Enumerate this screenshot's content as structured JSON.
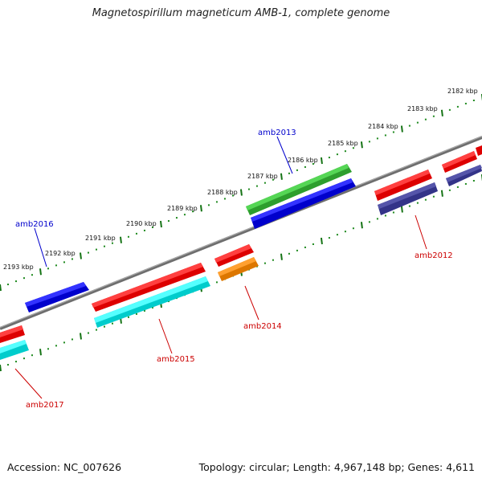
{
  "title": "Magnetospirillum magneticum AMB-1, complete genome",
  "footer": {
    "accession": "Accession: NC_007626",
    "summary": "Topology: circular; Length: 4,967,148 bp; Genes: 4,611"
  },
  "colors": {
    "backbone": "#808080",
    "tick_major": "#157315",
    "tick_minor": "#1f8a1f",
    "label_forward": "#0000cc",
    "label_reverse": "#cc0000"
  },
  "ticks": [
    {
      "kbp": 2182,
      "label": "2182 kbp"
    },
    {
      "kbp": 2183,
      "label": "2183 kbp"
    },
    {
      "kbp": 2184,
      "label": "2184 kbp"
    },
    {
      "kbp": 2185,
      "label": "2185 kbp"
    },
    {
      "kbp": 2186,
      "label": "2186 kbp"
    },
    {
      "kbp": 2187,
      "label": "2187 kbp"
    },
    {
      "kbp": 2188,
      "label": "2188 kbp"
    },
    {
      "kbp": 2189,
      "label": "2189 kbp"
    },
    {
      "kbp": 2190,
      "label": "2190 kbp"
    },
    {
      "kbp": 2191,
      "label": "2191 kbp"
    },
    {
      "kbp": 2192,
      "label": "2192 kbp"
    },
    {
      "kbp": 2193,
      "label": "2193 kbp"
    }
  ],
  "gene_labels": {
    "amb2013": "amb2013",
    "amb2016": "amb2016",
    "amb2012": "amb2012",
    "amb2014": "amb2014",
    "amb2015": "amb2015",
    "amb2017": "amb2017"
  },
  "features": [
    {
      "id": "amb2013",
      "strand": "forward",
      "track": "outer",
      "color": "#33bb33"
    },
    {
      "id": "amb2013",
      "strand": "forward",
      "track": "inner",
      "color": "#1111ee"
    },
    {
      "id": "amb2016",
      "strand": "forward",
      "track": "inner",
      "color": "#1111ee"
    },
    {
      "id": "amb2012",
      "strand": "reverse",
      "track": "outer",
      "color": "#ee1111"
    },
    {
      "id": "amb2012",
      "strand": "reverse",
      "track": "inner",
      "color": "#3b3b8f"
    },
    {
      "id": "amb2014",
      "strand": "reverse",
      "track": "outer",
      "color": "#ee1111"
    },
    {
      "id": "amb2014",
      "strand": "reverse",
      "track": "inner",
      "color": "#ff8800"
    },
    {
      "id": "amb2015",
      "strand": "reverse",
      "track": "outer",
      "color": "#ee1111"
    },
    {
      "id": "amb2015",
      "strand": "reverse",
      "track": "inner",
      "color": "#11eeee"
    },
    {
      "id": "amb2017",
      "strand": "reverse",
      "track": "outer",
      "color": "#ee1111"
    },
    {
      "id": "amb2017",
      "strand": "reverse",
      "track": "inner",
      "color": "#11eeee"
    },
    {
      "id": "amb2011",
      "strand": "reverse",
      "track": "outer",
      "color": "#ee1111"
    },
    {
      "id": "amb2011",
      "strand": "reverse",
      "track": "inner",
      "color": "#3b3b8f"
    }
  ]
}
